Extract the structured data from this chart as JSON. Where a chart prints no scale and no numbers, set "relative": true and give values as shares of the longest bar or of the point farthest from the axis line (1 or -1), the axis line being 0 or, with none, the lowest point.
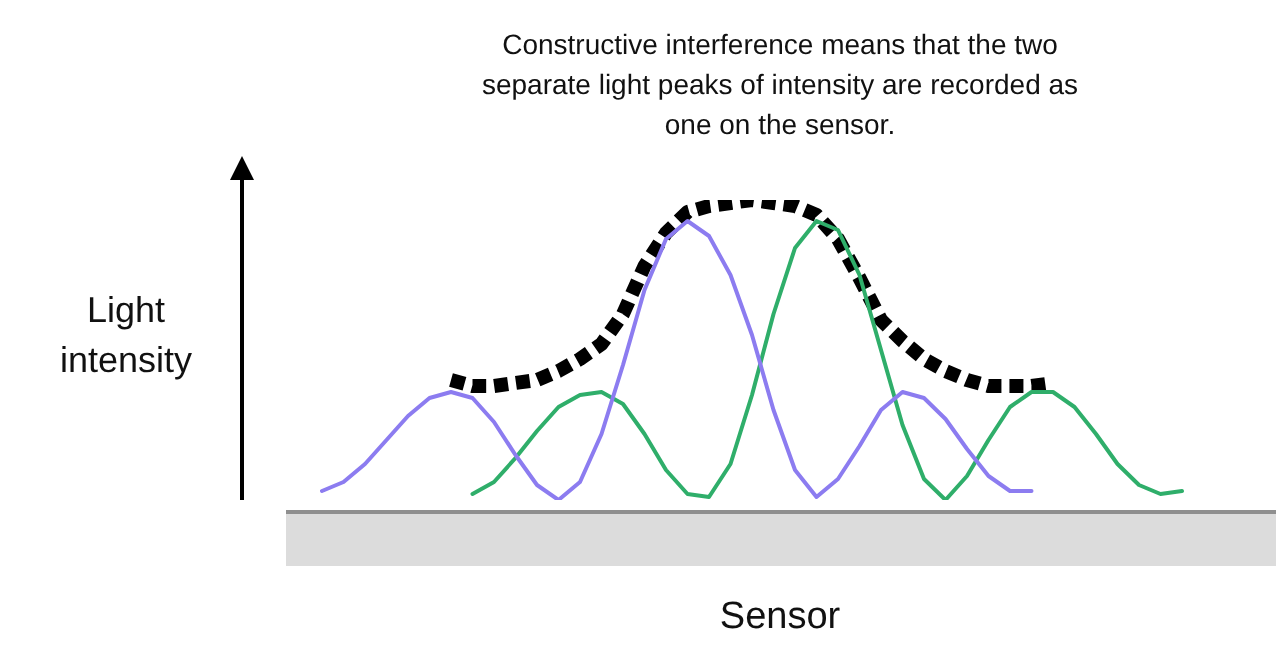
{
  "chart_data": {
    "type": "line",
    "title": "Constructive interference means that the two separate light peaks of intensity are recorded as one on the sensor.",
    "xlabel": "Sensor",
    "ylabel": "Light intensity",
    "relative": true,
    "categories": [
      null,
      null,
      null,
      null,
      null,
      null,
      null,
      null,
      null,
      null,
      null,
      null,
      null,
      null,
      null,
      null,
      null,
      null,
      null,
      null,
      null,
      null,
      null,
      null,
      null,
      null,
      null,
      null,
      null,
      null,
      null,
      null,
      null,
      null,
      null,
      null,
      null,
      null,
      null,
      null,
      null
    ],
    "series": [
      {
        "line_style": "solid",
        "color": "#8c7cf0",
        "values": [
          0.03,
          0.06,
          0.12,
          0.2,
          0.28,
          0.34,
          0.36,
          0.34,
          0.26,
          0.15,
          0.05,
          0.0,
          0.06,
          0.22,
          0.45,
          0.7,
          0.87,
          0.93,
          0.88,
          0.75,
          0.55,
          0.3,
          0.1,
          0.01,
          0.07,
          0.18,
          0.3,
          0.36,
          0.34,
          0.27,
          0.17,
          0.08,
          0.03,
          0.03,
          null,
          null,
          null,
          null,
          null,
          null,
          null
        ]
      },
      {
        "line_style": "solid",
        "color": "#2fae6a",
        "values": [
          null,
          null,
          null,
          null,
          null,
          null,
          null,
          0.02,
          0.06,
          0.14,
          0.23,
          0.31,
          0.35,
          0.36,
          0.32,
          0.22,
          0.1,
          0.02,
          0.01,
          0.12,
          0.35,
          0.62,
          0.84,
          0.93,
          0.9,
          0.75,
          0.5,
          0.25,
          0.07,
          0.0,
          0.08,
          0.2,
          0.31,
          0.36,
          0.36,
          0.31,
          0.22,
          0.12,
          0.05,
          0.02,
          0.03
        ]
      },
      {
        "line_style": "dotted",
        "color": "#000000",
        "values": [
          null,
          null,
          null,
          null,
          null,
          null,
          0.4,
          0.38,
          0.38,
          0.39,
          0.4,
          0.43,
          0.47,
          0.52,
          0.62,
          0.78,
          0.89,
          0.96,
          0.98,
          0.99,
          1.0,
          0.99,
          0.98,
          0.95,
          0.87,
          0.74,
          0.6,
          0.53,
          0.47,
          0.43,
          0.4,
          0.38,
          0.38,
          0.38,
          0.39,
          null,
          null,
          null,
          null,
          null,
          null
        ]
      }
    ]
  }
}
